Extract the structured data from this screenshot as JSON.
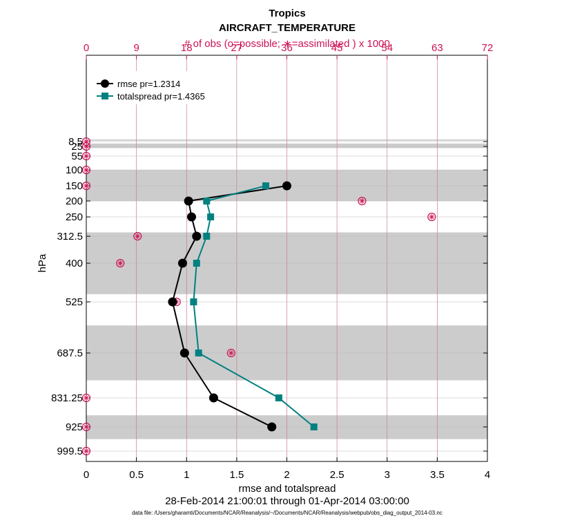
{
  "chart_data": {
    "type": "line",
    "title": "Tropics",
    "subtitle": "AIRCRAFT_TEMPERATURE",
    "top_axis_label": "# of obs (o=possible; ∗=assimilated ) x 1000",
    "top_ticks": [
      "0",
      "9",
      "18",
      "27",
      "36",
      "45",
      "54",
      "63",
      "72"
    ],
    "top_lim": [
      0,
      72
    ],
    "xlabel": "rmse and totalspread",
    "x_ticks": [
      "0",
      "0.5",
      "1",
      "1.5",
      "2",
      "2.5",
      "3",
      "3.5",
      "4"
    ],
    "xlim": [
      0,
      4
    ],
    "ylabel": "hPa",
    "y_ticks": [
      "8.5",
      "25",
      "55",
      "100",
      "150",
      "200",
      "250",
      "312.5",
      "400",
      "525",
      "687.5",
      "831.25",
      "925",
      "999.5"
    ],
    "levels": [
      8.5,
      25,
      55,
      100,
      150,
      200,
      250,
      312.5,
      400,
      525,
      687.5,
      831.25,
      925,
      999.5
    ],
    "date_range": "28-Feb-2014 21:00:01 through 01-Apr-2014 03:00:00",
    "footnote": "data file: /Users/gharamti/Documents/NCAR/Reanalysis/~/Documents/NCAR/Reanalysis/webpub/obs_diag_output_2014-03.nc",
    "bands": [
      [
        1,
        5
      ],
      [
        15,
        30
      ],
      [
        100,
        200
      ],
      [
        300,
        500
      ],
      [
        600,
        775
      ],
      [
        887.5,
        962.5
      ]
    ],
    "series": [
      {
        "name": "rmse pr=1.2314",
        "color": "#000000",
        "marker": "circle",
        "levels": [
          150,
          200,
          250,
          312.5,
          400,
          525,
          687.5,
          831.25,
          925
        ],
        "values": [
          2.0,
          1.02,
          1.05,
          1.1,
          0.96,
          0.86,
          0.98,
          1.27,
          1.85
        ]
      },
      {
        "name": "totalspread pr=1.4365",
        "color": "#008080",
        "marker": "square",
        "levels": [
          150,
          200,
          250,
          312.5,
          400,
          525,
          687.5,
          831.25,
          925
        ],
        "values": [
          1.79,
          1.2,
          1.24,
          1.2,
          1.1,
          1.07,
          1.12,
          1.92,
          2.27
        ]
      }
    ],
    "obs_counts_thousands": {
      "levels": [
        8.5,
        25,
        55,
        100,
        150,
        200,
        250,
        312.5,
        400,
        525,
        687.5,
        831.25,
        925,
        999.5
      ],
      "possible": [
        0,
        0,
        0,
        0,
        0,
        49.5,
        62,
        9.2,
        6.1,
        16.2,
        26,
        0,
        0,
        0
      ],
      "assimilated": [
        0,
        0,
        0,
        0,
        0,
        49.5,
        62,
        9.2,
        6.1,
        16.2,
        26,
        0,
        0,
        0
      ]
    },
    "legend_position": "top-left",
    "grid": true
  }
}
